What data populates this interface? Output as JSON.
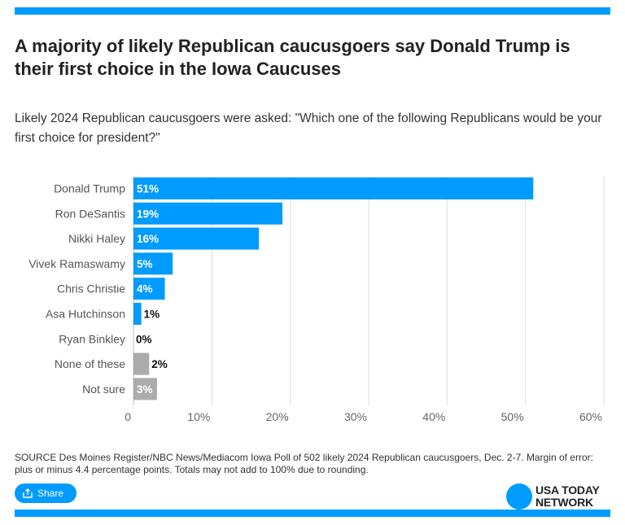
{
  "title": "A majority of likely Republican caucusgoers say Donald Trump is their first choice in the Iowa Caucuses",
  "subtitle": "Likely 2024 Republican caucusgoers were asked: \"Which one of the following Republicans would be your first choice for president?\"",
  "source": "SOURCE Des Moines Register/NBC News/Mediacom Iowa Poll of 502 likely 2024 Republican caucusgoers, Dec. 2-7. Margin of error: plus or minus 4.4 percentage points. Totals may not add to 100% due to rounding.",
  "share_label": "Share",
  "logo": {
    "line1": "USA TODAY",
    "line2": "NETWORK"
  },
  "colors": {
    "accent": "#009bff",
    "gray_bar": "#ababab",
    "grid": "#dddddd"
  },
  "chart_data": {
    "type": "bar",
    "orientation": "horizontal",
    "categories": [
      "Donald Trump",
      "Ron DeSantis",
      "Nikki Haley",
      "Vivek Ramaswamy",
      "Chris Christie",
      "Asa Hutchinson",
      "Ryan Binkley",
      "None of these",
      "Not sure"
    ],
    "values": [
      51,
      19,
      16,
      5,
      4,
      1,
      0,
      2,
      3
    ],
    "labels": [
      "51%",
      "19%",
      "16%",
      "5%",
      "4%",
      "1%",
      "0%",
      "2%",
      "3%"
    ],
    "bar_colors": [
      "#009bff",
      "#009bff",
      "#009bff",
      "#009bff",
      "#009bff",
      "#009bff",
      "#009bff",
      "#ababab",
      "#ababab"
    ],
    "xticks": [
      0,
      10,
      20,
      30,
      40,
      50,
      60
    ],
    "xtick_labels": [
      "0",
      "10%",
      "20%",
      "30%",
      "40%",
      "50%",
      "60%"
    ],
    "xlim": [
      0,
      60
    ],
    "grid": true,
    "title": "",
    "xlabel": "",
    "ylabel": ""
  }
}
